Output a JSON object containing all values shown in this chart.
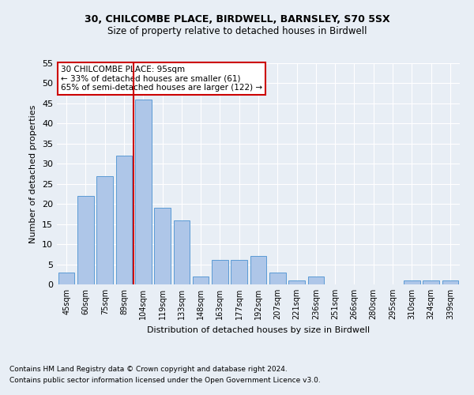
{
  "title1": "30, CHILCOMBE PLACE, BIRDWELL, BARNSLEY, S70 5SX",
  "title2": "Size of property relative to detached houses in Birdwell",
  "xlabel": "Distribution of detached houses by size in Birdwell",
  "ylabel": "Number of detached properties",
  "categories": [
    "45sqm",
    "60sqm",
    "75sqm",
    "89sqm",
    "104sqm",
    "119sqm",
    "133sqm",
    "148sqm",
    "163sqm",
    "177sqm",
    "192sqm",
    "207sqm",
    "221sqm",
    "236sqm",
    "251sqm",
    "266sqm",
    "280sqm",
    "295sqm",
    "310sqm",
    "324sqm",
    "339sqm"
  ],
  "values": [
    3,
    22,
    27,
    32,
    46,
    19,
    16,
    2,
    6,
    6,
    7,
    3,
    1,
    2,
    0,
    0,
    0,
    0,
    1,
    1,
    1
  ],
  "bar_color": "#aec6e8",
  "bar_edgecolor": "#5b9bd5",
  "vline_color": "#cc0000",
  "annotation_line1": "30 CHILCOMBE PLACE: 95sqm",
  "annotation_line2": "← 33% of detached houses are smaller (61)",
  "annotation_line3": "65% of semi-detached houses are larger (122) →",
  "annotation_box_facecolor": "#ffffff",
  "annotation_box_edgecolor": "#cc0000",
  "ylim": [
    0,
    55
  ],
  "yticks": [
    0,
    5,
    10,
    15,
    20,
    25,
    30,
    35,
    40,
    45,
    50,
    55
  ],
  "footnote1": "Contains HM Land Registry data © Crown copyright and database right 2024.",
  "footnote2": "Contains public sector information licensed under the Open Government Licence v3.0.",
  "bg_color": "#e8eef5",
  "grid_color": "#ffffff"
}
